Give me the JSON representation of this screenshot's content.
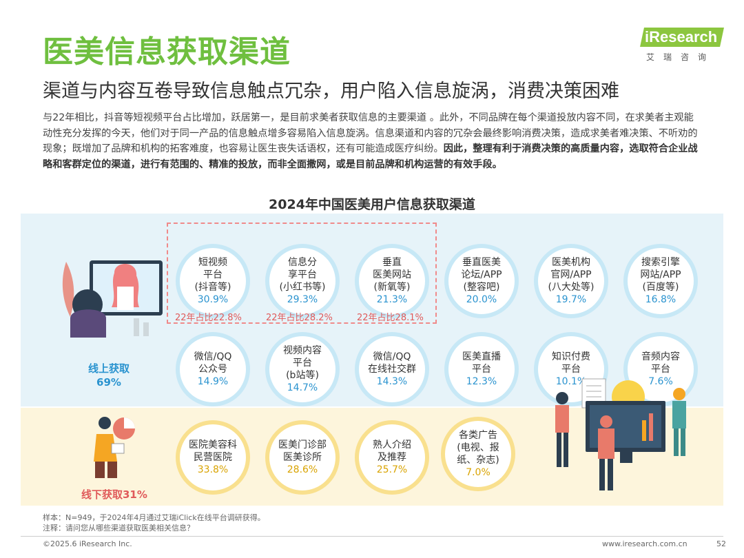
{
  "title": "医美信息获取渠道",
  "logo": {
    "brand": "iResearch",
    "sub": "艾瑞咨询"
  },
  "subtitle": "渠道与内容互卷导致信息触点冗杂，用户陷入信息旋涡，消费决策困难",
  "paragraph": {
    "normal": "与22年相比，抖音等短视频平台占比增加，跃居第一，是目前求美者获取信息的主要渠道 。此外，不同品牌在每个渠道投放内容不同，在求美者主观能动性充分发挥的今天，他们对于同一产品的信息触点增多容易陷入信息旋涡。信息渠道和内容的冗杂会最终影响消费决策，造成求美者难决策、不听劝的现象；既增加了品牌和机构的拓客难度，也容易让医生丧失话语权，还有可能造成医疗纠纷。",
    "bold": "因此，整理有利于消费决策的高质量内容，选取符合企业战略和客群定位的渠道，进行有范围的、精准的投放，而非全面撒网，或是目前品牌和机构运营的有效手段。"
  },
  "chart_data": {
    "type": "bubble-grid",
    "title": "2024年中国医美用户信息获取渠道",
    "groups": [
      {
        "name": "线上获取",
        "share": "69%",
        "color": "#2a93cf"
      },
      {
        "name": "线下获取",
        "share": "31%",
        "color": "#e05a5a"
      }
    ],
    "online": [
      {
        "label": "短视频\n平台\n(抖音等)",
        "value": 30.9,
        "display": "30.9%",
        "prev": "22年占比22.8%"
      },
      {
        "label": "信息分\n享平台\n(小红书等)",
        "value": 29.3,
        "display": "29.3%",
        "prev": "22年占比28.2%"
      },
      {
        "label": "垂直\n医美网站\n(新氧等)",
        "value": 21.3,
        "display": "21.3%",
        "prev": "22年占比28.1%"
      },
      {
        "label": "垂直医美\n论坛/APP\n(整容吧)",
        "value": 20.0,
        "display": "20.0%"
      },
      {
        "label": "医美机构\n官网/APP\n(八大处等)",
        "value": 19.7,
        "display": "19.7%"
      },
      {
        "label": "搜索引擎\n网站/APP\n(百度等)",
        "value": 16.8,
        "display": "16.8%"
      },
      {
        "label": "微信/QQ\n公众号",
        "value": 14.9,
        "display": "14.9%"
      },
      {
        "label": "视频内容\n平台\n(b站等)",
        "value": 14.7,
        "display": "14.7%"
      },
      {
        "label": "微信/QQ\n在线社交群",
        "value": 14.3,
        "display": "14.3%"
      },
      {
        "label": "医美直播\n平台",
        "value": 12.3,
        "display": "12.3%"
      },
      {
        "label": "知识付费\n平台",
        "value": 10.1,
        "display": "10.1%"
      },
      {
        "label": "音频内容\n平台",
        "value": 7.6,
        "display": "7.6%"
      }
    ],
    "offline": [
      {
        "label": "医院美容科\n民营医院",
        "value": 33.8,
        "display": "33.8%"
      },
      {
        "label": "医美门诊部\n医美诊所",
        "value": 28.6,
        "display": "28.6%"
      },
      {
        "label": "熟人介绍\n及推荐",
        "value": 25.7,
        "display": "25.7%"
      },
      {
        "label": "各类广告\n(电视、报\n纸、杂志)",
        "value": 7.0,
        "display": "7.0%"
      }
    ]
  },
  "labels": {
    "online": "线上获取",
    "online_share": "69%",
    "offline": "线下获取31%"
  },
  "footnote": {
    "sample": "样本：N=949，于2024年4月通过艾瑞iClick在线平台调研获得。",
    "note": "注释：请问您从哪些渠道获取医美相关信息？"
  },
  "footer": {
    "copyright": "©2025.6 iResearch Inc.",
    "url": "www.iresearch.com.cn",
    "page": "52"
  }
}
